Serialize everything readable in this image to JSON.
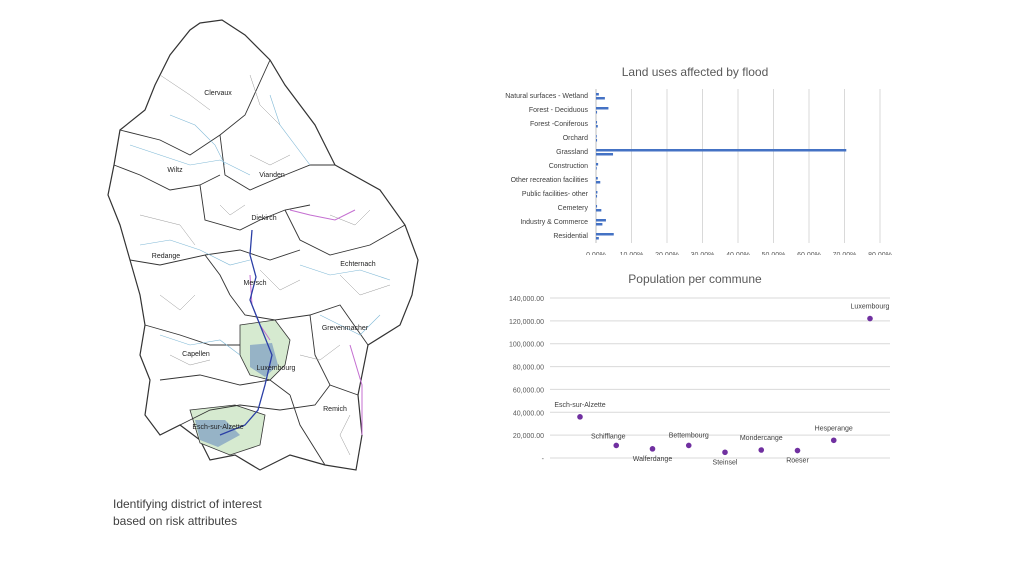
{
  "map": {
    "districts": [
      "Clervaux",
      "Wiltz",
      "Vianden",
      "Diekirch",
      "Redange",
      "Echternach",
      "Mersch",
      "Grevenmacher",
      "Capellen",
      "Luxembourg",
      "Esch-sur-Alzette",
      "Remich"
    ]
  },
  "caption": {
    "line1": "Identifying district of interest",
    "line2": "based on risk attributes"
  },
  "chart_data": [
    {
      "type": "bar",
      "orientation": "horizontal",
      "title": "Land uses affected by flood",
      "categories": [
        "Natural surfaces - Wetland",
        "Forest - Deciduous",
        "Forest -Coniferous",
        "Orchard",
        "Grassland",
        "Construction",
        "Other recreation facilities",
        "Public facilities- other",
        "Cemetery",
        "Industry & Commerce",
        "Residential"
      ],
      "series": [
        {
          "values": [
            0.8,
            3.5,
            0.3,
            0.2,
            70.5,
            0.6,
            0.5,
            0.4,
            0.3,
            2.8,
            5.0
          ]
        },
        {
          "values": [
            2.5,
            0.3,
            0.5,
            0.3,
            4.8,
            0.2,
            1.2,
            0.3,
            1.5,
            1.8,
            0.8
          ]
        }
      ],
      "xlim": [
        0,
        80
      ],
      "xticks": [
        "0.00%",
        "10.00%",
        "20.00%",
        "30.00%",
        "40.00%",
        "50.00%",
        "60.00%",
        "70.00%",
        "80.00%"
      ],
      "grid": true,
      "color": "#4472c4"
    },
    {
      "type": "scatter",
      "title": "Population per commune",
      "points": [
        {
          "label": "Esch-sur-Alzette",
          "x": 1,
          "y": 36000
        },
        {
          "label": "Schifflange",
          "x": 2,
          "y": 11000
        },
        {
          "label": "Walferdange",
          "x": 3,
          "y": 8000
        },
        {
          "label": "Bettembourg",
          "x": 4,
          "y": 11000
        },
        {
          "label": "Steinsel",
          "x": 5,
          "y": 5000
        },
        {
          "label": "Mondercange",
          "x": 6,
          "y": 7000
        },
        {
          "label": "Roeser",
          "x": 7,
          "y": 6500
        },
        {
          "label": "Hesperange",
          "x": 8,
          "y": 15500
        },
        {
          "label": "Luxembourg",
          "x": 9,
          "y": 122000
        }
      ],
      "ylim": [
        0,
        140000
      ],
      "yticks": [
        "-",
        "20,000.00",
        "40,000.00",
        "60,000.00",
        "80,000.00",
        "100,000.00",
        "120,000.00",
        "140,000.00"
      ],
      "grid": true,
      "color": "#7030a0"
    }
  ]
}
